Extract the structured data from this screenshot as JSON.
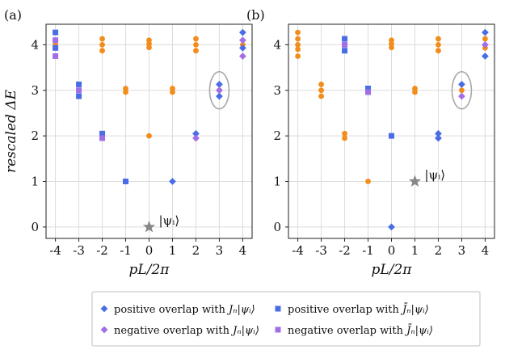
{
  "chart_data": [
    {
      "panel_label": "(a)",
      "type": "scatter",
      "xlabel": "pL/2π",
      "ylabel": "rescaled ΔE",
      "x_ticks": [
        "-4",
        "-3",
        "-2",
        "-1",
        "0",
        "1",
        "2",
        "3",
        "4"
      ],
      "y_ticks": [
        "0",
        "1",
        "2",
        "3",
        "4"
      ],
      "xlim": [
        -4.4,
        4.4
      ],
      "ylim": [
        -0.25,
        4.45
      ],
      "grid": true,
      "star": {
        "x": 0,
        "y": 0,
        "label": "|ψᵢ⟩"
      },
      "highlight": {
        "x": 3,
        "y": 3
      },
      "series": [
        {
          "name": "orange",
          "points": [
            [
              -4,
              4.08
            ],
            [
              -4,
              4.0
            ],
            [
              -2,
              4.13
            ],
            [
              -2,
              4.0
            ],
            [
              -2,
              3.87
            ],
            [
              -1,
              3.04
            ],
            [
              -1,
              2.96
            ],
            [
              0,
              4.1
            ],
            [
              0,
              4.02
            ],
            [
              0,
              3.94
            ],
            [
              0,
              2.0
            ],
            [
              1,
              3.04
            ],
            [
              1,
              2.96
            ],
            [
              2,
              4.13
            ],
            [
              2,
              4.0
            ],
            [
              2,
              3.87
            ],
            [
              3,
              3.0
            ],
            [
              4,
              4.0
            ]
          ]
        },
        {
          "name": "blue_diamond",
          "points": [
            [
              1,
              1.0
            ],
            [
              2,
              2.05
            ],
            [
              3,
              3.13
            ],
            [
              3,
              2.87
            ],
            [
              4,
              4.27
            ],
            [
              4,
              3.93
            ]
          ]
        },
        {
          "name": "purple_diamond",
          "points": [
            [
              2,
              1.95
            ],
            [
              3,
              3.0
            ],
            [
              4,
              4.1
            ],
            [
              4,
              3.75
            ]
          ]
        },
        {
          "name": "blue_square",
          "points": [
            [
              -4,
              4.27
            ],
            [
              -4,
              3.93
            ],
            [
              -3,
              3.13
            ],
            [
              -3,
              2.87
            ],
            [
              -2,
              2.05
            ],
            [
              -1,
              1.0
            ]
          ]
        },
        {
          "name": "purple_square",
          "points": [
            [
              -4,
              4.1
            ],
            [
              -4,
              3.75
            ],
            [
              -3,
              3.0
            ],
            [
              -2,
              1.95
            ]
          ]
        }
      ]
    },
    {
      "panel_label": "(b)",
      "type": "scatter",
      "xlabel": "pL/2π",
      "ylabel": "",
      "x_ticks": [
        "-4",
        "-3",
        "-2",
        "-1",
        "0",
        "1",
        "2",
        "3",
        "4"
      ],
      "y_ticks": [
        "0",
        "1",
        "2",
        "3",
        "4"
      ],
      "xlim": [
        -4.4,
        4.4
      ],
      "ylim": [
        -0.25,
        4.45
      ],
      "grid": true,
      "star": {
        "x": 1,
        "y": 1,
        "label": "|ψᵢ⟩"
      },
      "highlight": {
        "x": 3,
        "y": 3
      },
      "series": [
        {
          "name": "orange",
          "points": [
            [
              -4,
              4.27
            ],
            [
              -4,
              4.13
            ],
            [
              -4,
              4.0
            ],
            [
              -4,
              3.9
            ],
            [
              -4,
              3.75
            ],
            [
              -3,
              3.13
            ],
            [
              -3,
              3.0
            ],
            [
              -3,
              2.87
            ],
            [
              -2,
              2.05
            ],
            [
              -2,
              1.95
            ],
            [
              -1,
              1.0
            ],
            [
              0,
              4.1
            ],
            [
              0,
              4.02
            ],
            [
              0,
              3.94
            ],
            [
              1,
              3.04
            ],
            [
              1,
              2.96
            ],
            [
              2,
              4.13
            ],
            [
              2,
              4.0
            ],
            [
              2,
              3.87
            ],
            [
              3,
              3.0
            ],
            [
              4,
              4.13
            ],
            [
              4,
              3.93
            ]
          ]
        },
        {
          "name": "blue_diamond",
          "points": [
            [
              0,
              0.0
            ],
            [
              2,
              2.05
            ],
            [
              2,
              1.95
            ],
            [
              3,
              3.13
            ],
            [
              4,
              4.27
            ],
            [
              4,
              3.75
            ]
          ]
        },
        {
          "name": "purple_diamond",
          "points": [
            [
              3,
              2.87
            ],
            [
              4,
              4.0
            ]
          ]
        },
        {
          "name": "blue_square",
          "points": [
            [
              -2,
              4.13
            ],
            [
              -2,
              3.87
            ],
            [
              -1,
              3.04
            ],
            [
              0,
              2.0
            ]
          ]
        },
        {
          "name": "purple_square",
          "points": [
            [
              -2,
              4.0
            ],
            [
              -1,
              2.96
            ]
          ]
        }
      ]
    }
  ],
  "legend": [
    {
      "marker": "blue_diamond",
      "text": "positive overlap with",
      "math": "Jₙ|ψᵢ⟩"
    },
    {
      "marker": "blue_square",
      "text": "positive overlap with",
      "math": "J̄ₙ|ψᵢ⟩"
    },
    {
      "marker": "purple_diamond",
      "text": "negative overlap with",
      "math": "Jₙ|ψᵢ⟩"
    },
    {
      "marker": "purple_square",
      "text": "negative overlap with",
      "math": "J̄ₙ|ψᵢ⟩"
    }
  ],
  "colors": {
    "orange": "#f28c1a",
    "blue": "#4a6de5",
    "purple": "#a26ee6",
    "grid": "#dcdcdc",
    "star": "#888888",
    "highlight": "#a8a8a8"
  }
}
